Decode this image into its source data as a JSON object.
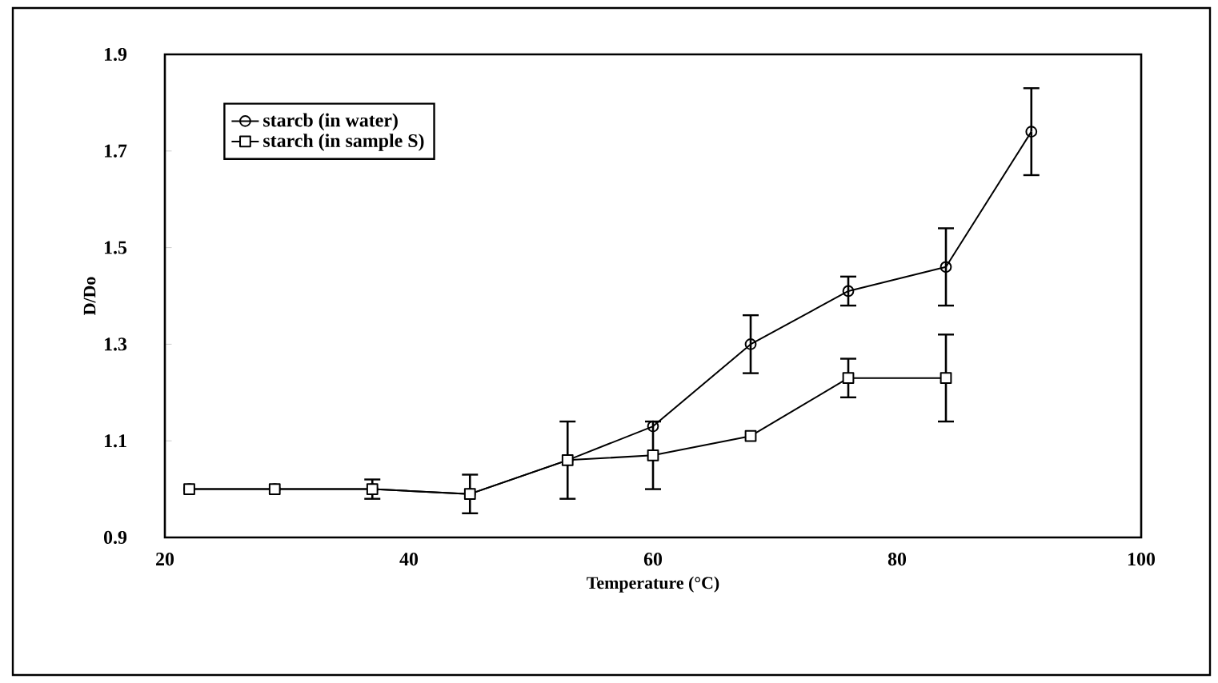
{
  "chart_data": {
    "type": "line",
    "xlabel": "Temperature (°C)",
    "ylabel": "D/Do",
    "series": [
      {
        "name": "starcb (in water)",
        "color": "#000000",
        "marker": "circle",
        "x": [
          22,
          29,
          37,
          45,
          53,
          60,
          68,
          76,
          84,
          91
        ],
        "values": [
          1.0,
          1.0,
          1.0,
          0.99,
          1.06,
          1.13,
          1.3,
          1.41,
          1.46,
          1.74
        ],
        "errors": [
          null,
          null,
          0.02,
          0.04,
          0.08,
          null,
          0.06,
          0.03,
          0.08,
          0.09
        ]
      },
      {
        "name": "starch (in sample S)",
        "color": "#000000",
        "marker": "square",
        "x": [
          22,
          29,
          37,
          45,
          53,
          60,
          68,
          76,
          84
        ],
        "values": [
          1.0,
          1.0,
          1.0,
          0.99,
          1.06,
          1.07,
          1.11,
          1.23,
          1.23
        ],
        "errors": [
          null,
          null,
          null,
          null,
          null,
          0.07,
          null,
          0.04,
          0.09
        ]
      }
    ],
    "xlim": [
      20,
      100
    ],
    "ylim": [
      0.9,
      1.9
    ],
    "xticks": [
      20,
      40,
      60,
      80,
      100
    ],
    "yticks": [
      0.9,
      1.1,
      1.3,
      1.5,
      1.7,
      1.9
    ],
    "legend": "top left",
    "grid": false,
    "line_style": "solid"
  }
}
